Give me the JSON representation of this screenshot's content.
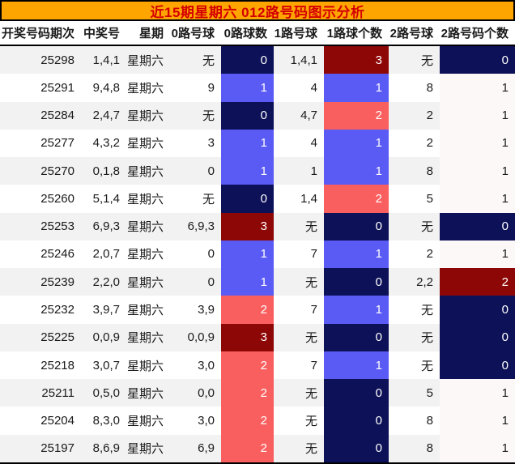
{
  "chart_data": {
    "type": "table",
    "title": "近15期星期六 012路号码图示分析",
    "columns": [
      {
        "key": "period",
        "label": "开奖号码期次"
      },
      {
        "key": "nums",
        "label": "中奖号"
      },
      {
        "key": "week",
        "label": "星期"
      },
      {
        "key": "road0_balls",
        "label": "0路号球"
      },
      {
        "key": "road0_count",
        "label": "0路球数"
      },
      {
        "key": "road1_balls",
        "label": "1路号球"
      },
      {
        "key": "road1_count",
        "label": "1路球个数"
      },
      {
        "key": "road2_balls",
        "label": "2路号球"
      },
      {
        "key": "road2_count",
        "label": "2路号码个数"
      }
    ],
    "rows": [
      {
        "period": "25298",
        "nums": "1,4,1",
        "week": "星期六",
        "road0_balls": "无",
        "road0_count": 0,
        "road1_balls": "1,4,1",
        "road1_count": 3,
        "road2_balls": "无",
        "road2_count": 0
      },
      {
        "period": "25291",
        "nums": "9,4,8",
        "week": "星期六",
        "road0_balls": "9",
        "road0_count": 1,
        "road1_balls": "4",
        "road1_count": 1,
        "road2_balls": "8",
        "road2_count": 1
      },
      {
        "period": "25284",
        "nums": "2,4,7",
        "week": "星期六",
        "road0_balls": "无",
        "road0_count": 0,
        "road1_balls": "4,7",
        "road1_count": 2,
        "road2_balls": "2",
        "road2_count": 1
      },
      {
        "period": "25277",
        "nums": "4,3,2",
        "week": "星期六",
        "road0_balls": "3",
        "road0_count": 1,
        "road1_balls": "4",
        "road1_count": 1,
        "road2_balls": "2",
        "road2_count": 1
      },
      {
        "period": "25270",
        "nums": "0,1,8",
        "week": "星期六",
        "road0_balls": "0",
        "road0_count": 1,
        "road1_balls": "1",
        "road1_count": 1,
        "road2_balls": "8",
        "road2_count": 1
      },
      {
        "period": "25260",
        "nums": "5,1,4",
        "week": "星期六",
        "road0_balls": "无",
        "road0_count": 0,
        "road1_balls": "1,4",
        "road1_count": 2,
        "road2_balls": "5",
        "road2_count": 1
      },
      {
        "period": "25253",
        "nums": "6,9,3",
        "week": "星期六",
        "road0_balls": "6,9,3",
        "road0_count": 3,
        "road1_balls": "无",
        "road1_count": 0,
        "road2_balls": "无",
        "road2_count": 0
      },
      {
        "period": "25246",
        "nums": "2,0,7",
        "week": "星期六",
        "road0_balls": "0",
        "road0_count": 1,
        "road1_balls": "7",
        "road1_count": 1,
        "road2_balls": "2",
        "road2_count": 1
      },
      {
        "period": "25239",
        "nums": "2,2,0",
        "week": "星期六",
        "road0_balls": "0",
        "road0_count": 1,
        "road1_balls": "无",
        "road1_count": 0,
        "road2_balls": "2,2",
        "road2_count": 2
      },
      {
        "period": "25232",
        "nums": "3,9,7",
        "week": "星期六",
        "road0_balls": "3,9",
        "road0_count": 2,
        "road1_balls": "7",
        "road1_count": 1,
        "road2_balls": "无",
        "road2_count": 0
      },
      {
        "period": "25225",
        "nums": "0,0,9",
        "week": "星期六",
        "road0_balls": "0,0,9",
        "road0_count": 3,
        "road1_balls": "无",
        "road1_count": 0,
        "road2_balls": "无",
        "road2_count": 0
      },
      {
        "period": "25218",
        "nums": "3,0,7",
        "week": "星期六",
        "road0_balls": "3,0",
        "road0_count": 2,
        "road1_balls": "7",
        "road1_count": 1,
        "road2_balls": "无",
        "road2_count": 0
      },
      {
        "period": "25211",
        "nums": "0,5,0",
        "week": "星期六",
        "road0_balls": "0,0",
        "road0_count": 2,
        "road1_balls": "无",
        "road1_count": 0,
        "road2_balls": "5",
        "road2_count": 1
      },
      {
        "period": "25204",
        "nums": "8,3,0",
        "week": "星期六",
        "road0_balls": "3,0",
        "road0_count": 2,
        "road1_balls": "无",
        "road1_count": 0,
        "road2_balls": "8",
        "road2_count": 1
      },
      {
        "period": "25197",
        "nums": "8,6,9",
        "week": "星期六",
        "road0_balls": "6,9",
        "road0_count": 2,
        "road1_balls": "无",
        "road1_count": 0,
        "road2_balls": "8",
        "road2_count": 1
      }
    ]
  },
  "colors": {
    "title_bg": "#ffa500",
    "title_text": "#d40000",
    "title_border": "#000000",
    "row_odd_bg": "#f2f2f2",
    "row_even_bg": "#ffffff",
    "count_scale_max3": {
      "0": "#0d1157",
      "1": "#5a5af5",
      "2": "#fa5f5f",
      "3": "#8e0707"
    },
    "count_scale_max2": {
      "0": "#0d1157",
      "1": "#fdf8f8",
      "2": "#8e0707"
    },
    "count_text_on_dark": "#ffffff",
    "count_text_on_light": "#1a1a1a"
  }
}
